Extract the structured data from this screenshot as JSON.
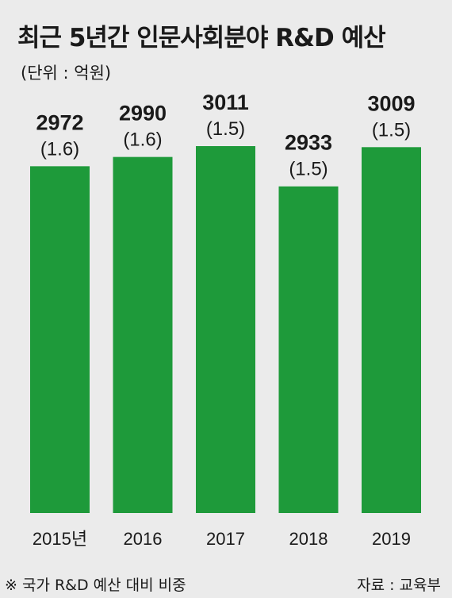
{
  "chart_data": {
    "type": "bar",
    "title": "최근 5년간 인문사회분야 R&D 예산",
    "unit": "(단위 : 억원)",
    "categories": [
      "2015년",
      "2016",
      "2017",
      "2018",
      "2019"
    ],
    "values": [
      2972,
      2990,
      3011,
      2933,
      3009
    ],
    "shares": [
      "(1.6)",
      "(1.6)",
      "(1.5)",
      "(1.5)",
      "(1.5)"
    ],
    "ylim": [
      0,
      3011
    ],
    "bar_color": "#1e9a3a",
    "legend": "none",
    "grid": false
  },
  "footnote": "※ 국가 R&D 예산 대비 비중",
  "source": "자료 : 교육부"
}
